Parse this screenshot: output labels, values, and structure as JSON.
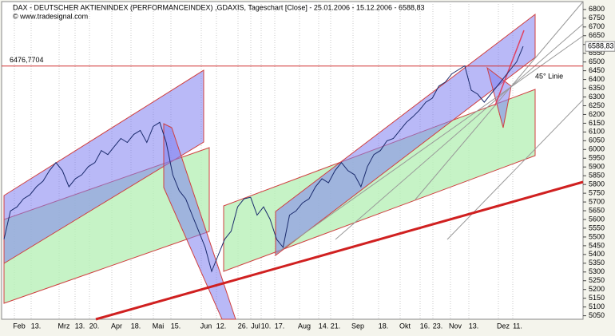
{
  "chart_data": {
    "type": "line",
    "title": "DAX  - DEUTSCHER AKTIENINDEX (PERFORMANCEINDEX) ,GDAXIS, Tageschart [Close] - 25.01.2006 - 15.12.2006 - 6588,83",
    "subtitle": "© www.tradesignal.com",
    "annotation": "45° Linie",
    "xticklabels": [
      "Feb",
      "13.",
      "Mrz",
      "13.",
      "20.",
      "Apr",
      "18.",
      "Mai",
      "15.",
      "Jun",
      "12.",
      "26.",
      "Jul",
      "10.",
      "17.",
      "Aug",
      "14.",
      "21.",
      "Sep",
      "18.",
      "Okt",
      "16.",
      "23.",
      "Nov",
      "13.",
      "Dez",
      "11."
    ],
    "series": [
      {
        "name": "DAX",
        "color": "#1a2a6c",
        "values": [
          5487,
          5649,
          5672,
          5718,
          5741,
          5787,
          5819,
          5879,
          5925,
          5879,
          5787,
          5833,
          5856,
          5902,
          5925,
          5994,
          5971,
          6017,
          6063,
          6040,
          6086,
          6109,
          6040,
          6132,
          6155,
          6040,
          5856,
          5764,
          5718,
          5625,
          5533,
          5441,
          5303,
          5395,
          5487,
          5533,
          5672,
          5718,
          5727,
          5625,
          5672,
          5602,
          5487,
          5441,
          5625,
          5649,
          5695,
          5718,
          5787,
          5833,
          5810,
          5879,
          5925,
          5879,
          5856,
          5787,
          5902,
          5971,
          5994,
          6049,
          6063,
          6109,
          6155,
          6187,
          6224,
          6270,
          6293,
          6362,
          6385,
          6432,
          6455,
          6478,
          6339,
          6316,
          6270,
          6316,
          6362,
          6408,
          6455,
          6501,
          6589
        ]
      }
    ],
    "hline": {
      "value": 6476.7704,
      "label": "6476,7704",
      "color": "#d03030"
    },
    "last_value": {
      "value": 6588.83,
      "label": "6588,83"
    },
    "ylim": [
      5030,
      6845
    ],
    "yticks": [
      5050,
      5100,
      5150,
      5200,
      5250,
      5300,
      5350,
      5400,
      5450,
      5500,
      5550,
      5600,
      5650,
      5700,
      5750,
      5800,
      5850,
      5900,
      5950,
      6000,
      6050,
      6100,
      6150,
      6200,
      6250,
      6300,
      6350,
      6400,
      6450,
      6500,
      6550,
      6600,
      6650,
      6700,
      6750,
      6800
    ],
    "grid": true
  }
}
